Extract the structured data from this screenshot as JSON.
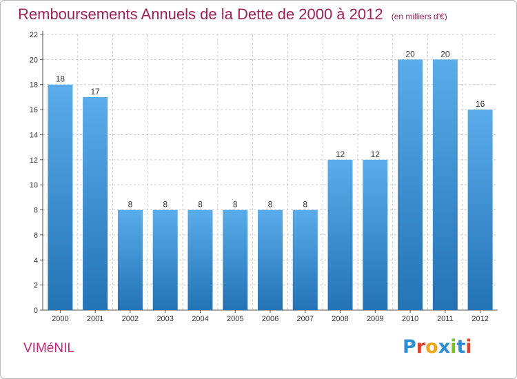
{
  "header": {
    "title": "Remboursements Annuels de la Dette de 2000 à 2012",
    "unit": "(en milliers d'€)"
  },
  "footer": {
    "commune": "VIMéNIL",
    "logo": [
      "P",
      "r",
      "o",
      "x",
      "i",
      "t",
      "i"
    ]
  },
  "colors": {
    "title": "#a0215a",
    "bar_top": "#5aacea",
    "bar_bottom": "#2373b5",
    "grid": "#cccccc",
    "logo": [
      "#2b8fd6",
      "#e0432c",
      "#f0a416",
      "#2b8fd6",
      "#7bbf2a",
      "#2b8fd6",
      "#e0432c"
    ]
  },
  "chart_data": {
    "type": "bar",
    "title": "Remboursements Annuels de la Dette de 2000 à 2012",
    "xlabel": "",
    "ylabel": "",
    "ylim": [
      0,
      22
    ],
    "yticks": [
      0,
      2,
      4,
      6,
      8,
      10,
      12,
      14,
      16,
      18,
      20,
      22
    ],
    "grid": true,
    "categories": [
      "2000",
      "2001",
      "2002",
      "2003",
      "2004",
      "2005",
      "2006",
      "2007",
      "2008",
      "2009",
      "2010",
      "2011",
      "2012"
    ],
    "values": [
      18,
      17,
      8,
      8,
      8,
      8,
      8,
      8,
      12,
      12,
      20,
      20,
      16
    ]
  }
}
